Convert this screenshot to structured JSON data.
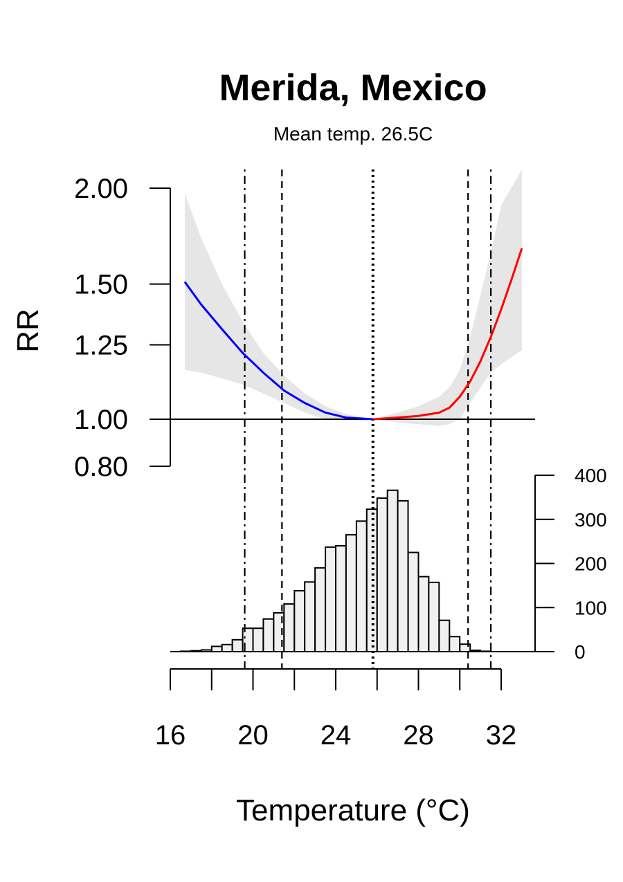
{
  "chart_data": {
    "type": "line",
    "title": "Merida, Mexico",
    "subtitle": "Mean temp. 26.5C",
    "xlabel": "Temperature (°C)",
    "ylabel": "RR",
    "xlim": [
      16,
      33
    ],
    "xticks": [
      16,
      18,
      20,
      22,
      24,
      26,
      28,
      30,
      32
    ],
    "xtick_labels": [
      "16",
      "",
      "20",
      "",
      "24",
      "",
      "28",
      "",
      "32"
    ],
    "rr_axis": {
      "scale": "log",
      "ticks": [
        0.8,
        1.0,
        1.25,
        1.5,
        2.0
      ],
      "tick_labels": [
        "0.80",
        "1.00",
        "1.25",
        "1.50",
        "2.00"
      ],
      "reference": 1.0
    },
    "count_axis": {
      "ticks": [
        0,
        100,
        200,
        300,
        400
      ],
      "tick_labels": [
        "0",
        "100",
        "200",
        "300",
        "400"
      ]
    },
    "mmt": 25.8,
    "vlines": [
      {
        "x": 19.6,
        "style": "dotdash"
      },
      {
        "x": 21.4,
        "style": "dashed"
      },
      {
        "x": 25.8,
        "style": "dotted"
      },
      {
        "x": 30.4,
        "style": "dashed"
      },
      {
        "x": 31.5,
        "style": "dotdash"
      }
    ],
    "series": [
      {
        "color": "#0000ff",
        "x": [
          16.7,
          17.5,
          18.5,
          19.5,
          20.5,
          21.5,
          22.5,
          23.5,
          24.5,
          25.8
        ],
        "y": [
          1.51,
          1.41,
          1.31,
          1.22,
          1.15,
          1.09,
          1.05,
          1.02,
          1.005,
          1.0
        ]
      },
      {
        "color": "#ff0000",
        "x": [
          25.8,
          27.0,
          28.0,
          29.0,
          29.5,
          30.0,
          30.5,
          31.0,
          31.5,
          32.0,
          32.5,
          33.0
        ],
        "y": [
          1.0,
          1.005,
          1.01,
          1.02,
          1.035,
          1.07,
          1.12,
          1.19,
          1.28,
          1.39,
          1.52,
          1.67
        ]
      }
    ],
    "ci_band": {
      "color": "#e6e6e6",
      "x": [
        16.7,
        17.5,
        18.5,
        19.5,
        20.5,
        21.5,
        22.5,
        23.5,
        24.5,
        25.8,
        27.0,
        28.0,
        29.0,
        29.5,
        30.0,
        30.5,
        31.0,
        31.5,
        32.0,
        33.0
      ],
      "lower": [
        1.16,
        1.15,
        1.13,
        1.11,
        1.08,
        1.05,
        1.02,
        1.0,
        0.995,
        1.0,
        0.99,
        0.985,
        0.98,
        0.985,
        1.0,
        1.05,
        1.1,
        1.15,
        1.18,
        1.23
      ],
      "upper": [
        1.97,
        1.72,
        1.5,
        1.34,
        1.22,
        1.14,
        1.08,
        1.04,
        1.015,
        1.0,
        1.02,
        1.04,
        1.07,
        1.1,
        1.16,
        1.28,
        1.45,
        1.65,
        1.9,
        2.3
      ]
    },
    "histogram": {
      "fill": "#f0f0f0",
      "bin_edges": [
        16.5,
        17.0,
        17.5,
        18.0,
        18.5,
        19.0,
        19.5,
        20.0,
        20.5,
        21.0,
        21.5,
        22.0,
        22.5,
        23.0,
        23.5,
        24.0,
        24.5,
        25.0,
        25.5,
        26.0,
        26.5,
        27.0,
        27.5,
        28.0,
        28.5,
        29.0,
        29.5,
        30.0,
        30.5,
        31.0,
        31.5,
        32.0,
        32.5,
        33.0
      ],
      "counts": [
        1,
        2,
        4,
        12,
        16,
        27,
        53,
        53,
        74,
        88,
        108,
        138,
        158,
        190,
        237,
        240,
        265,
        296,
        323,
        348,
        366,
        342,
        225,
        170,
        157,
        71,
        34,
        17,
        3,
        1,
        0,
        0,
        0
      ]
    }
  }
}
